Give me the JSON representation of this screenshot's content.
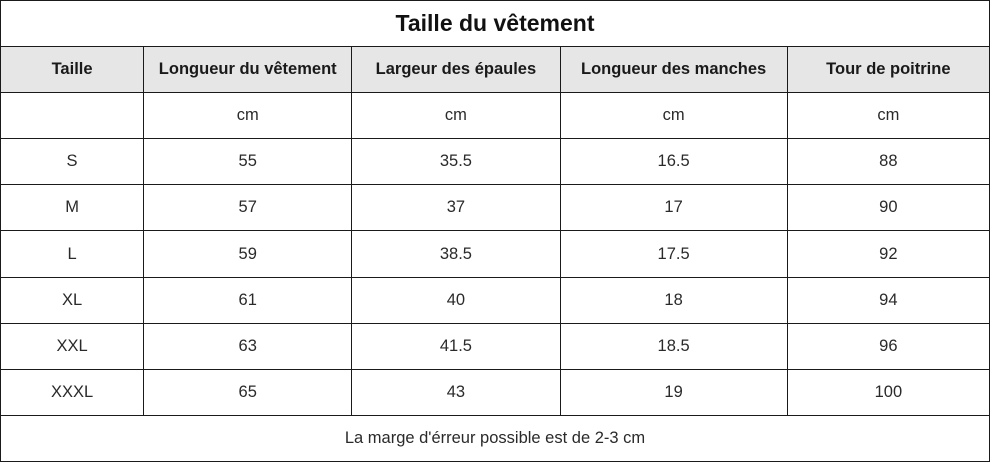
{
  "title": "Taille du vêtement",
  "headers": [
    "Taille",
    "Longueur du vêtement",
    "Largeur des épaules",
    "Longueur des manches",
    "Tour de poitrine"
  ],
  "units": [
    "",
    "cm",
    "cm",
    "cm",
    "cm"
  ],
  "rows": [
    [
      "S",
      "55",
      "35.5",
      "16.5",
      "88"
    ],
    [
      "M",
      "57",
      "37",
      "17",
      "90"
    ],
    [
      "L",
      "59",
      "38.5",
      "17.5",
      "92"
    ],
    [
      "XL",
      "61",
      "40",
      "18",
      "94"
    ],
    [
      "XXL",
      "63",
      "41.5",
      "18.5",
      "96"
    ],
    [
      "XXXL",
      "65",
      "43",
      "19",
      "100"
    ]
  ],
  "footer_note": "La marge d'érreur possible est de 2-3 cm",
  "colors": {
    "header_background": "#e6e6e6",
    "border": "#1a1a1a",
    "text": "#222222"
  }
}
